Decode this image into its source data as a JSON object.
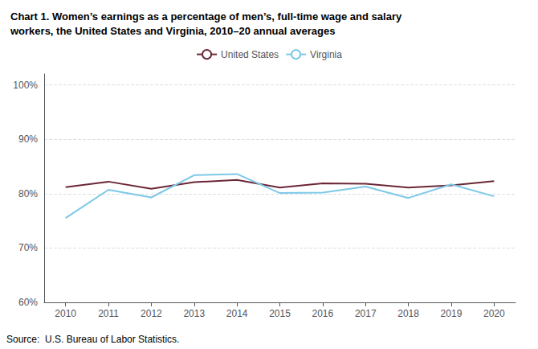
{
  "chart_data": {
    "type": "line",
    "title": "Chart 1. Women’s earnings as a percentage of men’s, full-time wage and salary\nworkers, the United States and Virginia, 2010–20 annual averages",
    "x": [
      2010,
      2011,
      2012,
      2013,
      2014,
      2015,
      2016,
      2017,
      2018,
      2019,
      2020
    ],
    "series": [
      {
        "name": "United States",
        "color": "#6B2737",
        "values": [
          81.2,
          82.2,
          80.9,
          82.1,
          82.5,
          81.1,
          81.9,
          81.8,
          81.1,
          81.5,
          82.3
        ]
      },
      {
        "name": "Virginia",
        "color": "#7DC8E8",
        "values": [
          75.5,
          80.7,
          79.3,
          83.4,
          83.6,
          80.1,
          80.2,
          81.3,
          79.2,
          81.7,
          79.5
        ]
      }
    ],
    "xlim": [
      2009.5,
      2020.5
    ],
    "xticks": [
      2010,
      2011,
      2012,
      2013,
      2014,
      2015,
      2016,
      2017,
      2018,
      2019,
      2020
    ],
    "ylim": [
      60,
      102
    ],
    "yticks": [
      {
        "value": 60,
        "label": "60%"
      },
      {
        "value": 70,
        "label": "70%"
      },
      {
        "value": 80,
        "label": "80%"
      },
      {
        "value": 90,
        "label": "90%"
      },
      {
        "value": 100,
        "label": "100%"
      }
    ],
    "grid": true,
    "legend": "top",
    "annotations": [
      "Source:  U.S. Bureau of Labor Statistics."
    ]
  }
}
